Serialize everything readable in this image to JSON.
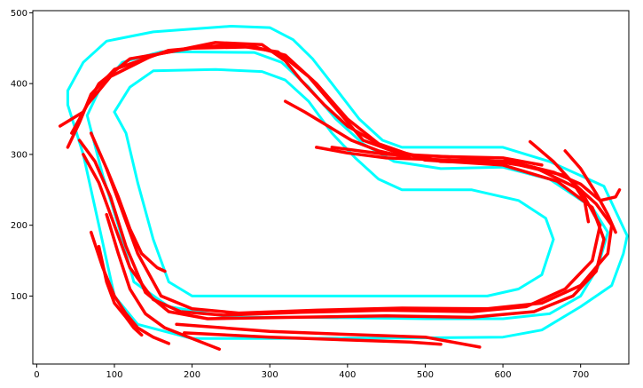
{
  "chart_data": {
    "type": "line",
    "title": "",
    "xlabel": "",
    "ylabel": "",
    "xlim": [
      -5,
      762
    ],
    "ylim": [
      4,
      503
    ],
    "x_ticks": [
      0,
      100,
      200,
      300,
      400,
      500,
      600,
      700
    ],
    "y_ticks": [
      100,
      200,
      300,
      400,
      500
    ],
    "x_tick_labels": [
      "0",
      "100",
      "200",
      "300",
      "400",
      "500",
      "600",
      "700"
    ],
    "y_tick_labels": [
      "100",
      "200",
      "300",
      "400",
      "500"
    ],
    "grid": false,
    "legend": false,
    "series": [
      {
        "color": "#00ffff",
        "role": "track outer boundary",
        "closed": true,
        "points": [
          [
            40,
            390
          ],
          [
            60,
            430
          ],
          [
            90,
            460
          ],
          [
            150,
            473
          ],
          [
            250,
            481
          ],
          [
            300,
            479
          ],
          [
            330,
            462
          ],
          [
            355,
            435
          ],
          [
            380,
            400
          ],
          [
            415,
            350
          ],
          [
            445,
            320
          ],
          [
            470,
            310
          ],
          [
            600,
            310
          ],
          [
            660,
            290
          ],
          [
            730,
            255
          ],
          [
            760,
            185
          ],
          [
            755,
            160
          ],
          [
            740,
            115
          ],
          [
            700,
            85
          ],
          [
            650,
            52
          ],
          [
            600,
            42
          ],
          [
            500,
            41
          ],
          [
            300,
            40
          ],
          [
            200,
            40
          ],
          [
            130,
            60
          ],
          [
            100,
            100
          ],
          [
            80,
            200
          ],
          [
            60,
            300
          ],
          [
            40,
            370
          ]
        ]
      },
      {
        "color": "#00ffff",
        "role": "track middle boundary",
        "closed": true,
        "points": [
          [
            65,
            355
          ],
          [
            80,
            390
          ],
          [
            110,
            430
          ],
          [
            160,
            445
          ],
          [
            280,
            444
          ],
          [
            315,
            430
          ],
          [
            350,
            395
          ],
          [
            385,
            350
          ],
          [
            420,
            315
          ],
          [
            460,
            290
          ],
          [
            520,
            280
          ],
          [
            600,
            282
          ],
          [
            660,
            265
          ],
          [
            715,
            225
          ],
          [
            735,
            190
          ],
          [
            722,
            140
          ],
          [
            700,
            100
          ],
          [
            660,
            75
          ],
          [
            600,
            68
          ],
          [
            500,
            68
          ],
          [
            350,
            70
          ],
          [
            250,
            70
          ],
          [
            170,
            85
          ],
          [
            125,
            120
          ],
          [
            105,
            200
          ],
          [
            85,
            270
          ]
        ]
      },
      {
        "color": "#00ffff",
        "role": "track inner boundary",
        "closed": true,
        "points": [
          [
            100,
            360
          ],
          [
            120,
            395
          ],
          [
            150,
            418
          ],
          [
            230,
            420
          ],
          [
            290,
            417
          ],
          [
            320,
            405
          ],
          [
            350,
            375
          ],
          [
            380,
            330
          ],
          [
            410,
            295
          ],
          [
            440,
            265
          ],
          [
            470,
            250
          ],
          [
            560,
            250
          ],
          [
            620,
            235
          ],
          [
            655,
            210
          ],
          [
            665,
            180
          ],
          [
            650,
            130
          ],
          [
            620,
            110
          ],
          [
            580,
            100
          ],
          [
            450,
            100
          ],
          [
            300,
            100
          ],
          [
            200,
            100
          ],
          [
            170,
            120
          ],
          [
            150,
            180
          ],
          [
            130,
            260
          ],
          [
            115,
            330
          ]
        ]
      },
      {
        "color": "#ff0000",
        "role": "trajectory 1",
        "closed": false,
        "points": [
          [
            30,
            340
          ],
          [
            60,
            360
          ],
          [
            80,
            400
          ],
          [
            120,
            435
          ],
          [
            200,
            450
          ],
          [
            280,
            452
          ],
          [
            320,
            440
          ],
          [
            360,
            400
          ],
          [
            400,
            350
          ],
          [
            440,
            315
          ],
          [
            500,
            292
          ],
          [
            600,
            285
          ],
          [
            670,
            262
          ],
          [
            715,
            225
          ],
          [
            730,
            180
          ],
          [
            720,
            135
          ],
          [
            690,
            100
          ],
          [
            640,
            78
          ],
          [
            560,
            70
          ],
          [
            450,
            72
          ],
          [
            330,
            70
          ],
          [
            220,
            68
          ],
          [
            170,
            78
          ],
          [
            140,
            105
          ],
          [
            115,
            170
          ],
          [
            95,
            240
          ],
          [
            75,
            290
          ],
          [
            55,
            320
          ]
        ]
      },
      {
        "color": "#ff0000",
        "role": "trajectory 2",
        "closed": false,
        "points": [
          [
            40,
            310
          ],
          [
            55,
            345
          ],
          [
            70,
            385
          ],
          [
            100,
            420
          ],
          [
            170,
            447
          ],
          [
            250,
            455
          ],
          [
            310,
            445
          ],
          [
            350,
            410
          ],
          [
            385,
            365
          ],
          [
            420,
            320
          ],
          [
            470,
            300
          ],
          [
            560,
            295
          ],
          [
            640,
            282
          ],
          [
            700,
            250
          ],
          [
            725,
            200
          ],
          [
            715,
            150
          ],
          [
            680,
            110
          ],
          [
            630,
            85
          ],
          [
            560,
            78
          ],
          [
            450,
            80
          ],
          [
            340,
            77
          ],
          [
            240,
            73
          ],
          [
            185,
            78
          ],
          [
            150,
            95
          ],
          [
            120,
            140
          ],
          [
            100,
            200
          ],
          [
            80,
            260
          ],
          [
            60,
            300
          ]
        ]
      },
      {
        "color": "#ff0000",
        "role": "trajectory 3",
        "closed": false,
        "points": [
          [
            45,
            330
          ],
          [
            65,
            370
          ],
          [
            95,
            410
          ],
          [
            150,
            440
          ],
          [
            230,
            458
          ],
          [
            290,
            455
          ],
          [
            320,
            432
          ],
          [
            340,
            405
          ],
          [
            370,
            370
          ],
          [
            400,
            340
          ],
          [
            450,
            308
          ],
          [
            520,
            290
          ],
          [
            610,
            288
          ],
          [
            680,
            270
          ],
          [
            720,
            230
          ],
          [
            740,
            200
          ],
          [
            735,
            160
          ],
          [
            700,
            115
          ],
          [
            650,
            90
          ],
          [
            580,
            82
          ],
          [
            470,
            83
          ],
          [
            360,
            80
          ],
          [
            260,
            76
          ],
          [
            200,
            82
          ],
          [
            160,
            100
          ],
          [
            130,
            160
          ],
          [
            110,
            220
          ],
          [
            90,
            280
          ],
          [
            70,
            330
          ]
        ]
      },
      {
        "color": "#ff0000",
        "role": "trajectory 4",
        "closed": false,
        "points": [
          [
            360,
            310
          ],
          [
            400,
            302
          ],
          [
            450,
            295
          ],
          [
            530,
            292
          ],
          [
            610,
            290
          ],
          [
            665,
            275
          ],
          [
            700,
            258
          ],
          [
            725,
            235
          ],
          [
            745,
            240
          ],
          [
            750,
            250
          ]
        ]
      },
      {
        "color": "#ff0000",
        "role": "trajectory 5",
        "closed": false,
        "points": [
          [
            680,
            305
          ],
          [
            700,
            280
          ],
          [
            720,
            245
          ],
          [
            735,
            215
          ],
          [
            745,
            190
          ]
        ]
      },
      {
        "color": "#ff0000",
        "role": "trajectory 6",
        "closed": false,
        "points": [
          [
            635,
            318
          ],
          [
            665,
            290
          ],
          [
            690,
            260
          ],
          [
            705,
            235
          ],
          [
            710,
            205
          ]
        ]
      },
      {
        "color": "#ff0000",
        "role": "trajectory 7",
        "closed": false,
        "points": [
          [
            320,
            375
          ],
          [
            345,
            360
          ],
          [
            375,
            340
          ],
          [
            405,
            320
          ],
          [
            440,
            305
          ],
          [
            480,
            295
          ]
        ]
      },
      {
        "color": "#ff0000",
        "role": "trajectory 8",
        "closed": false,
        "points": [
          [
            90,
            280
          ],
          [
            105,
            240
          ],
          [
            120,
            195
          ],
          [
            135,
            160
          ],
          [
            155,
            140
          ],
          [
            165,
            135
          ]
        ]
      },
      {
        "color": "#ff0000",
        "role": "trajectory 9",
        "closed": false,
        "points": [
          [
            90,
            215
          ],
          [
            105,
            160
          ],
          [
            120,
            110
          ],
          [
            140,
            75
          ],
          [
            165,
            55
          ],
          [
            200,
            40
          ],
          [
            235,
            25
          ]
        ]
      },
      {
        "color": "#ff0000",
        "role": "trajectory 10",
        "closed": false,
        "points": [
          [
            70,
            190
          ],
          [
            85,
            140
          ],
          [
            100,
            100
          ],
          [
            115,
            75
          ],
          [
            130,
            55
          ],
          [
            150,
            42
          ],
          [
            170,
            33
          ]
        ]
      },
      {
        "color": "#ff0000",
        "role": "trajectory 11",
        "closed": false,
        "points": [
          [
            80,
            170
          ],
          [
            90,
            120
          ],
          [
            100,
            90
          ],
          [
            115,
            70
          ],
          [
            125,
            55
          ],
          [
            135,
            45
          ]
        ]
      },
      {
        "color": "#ff0000",
        "role": "trajectory 12",
        "closed": false,
        "points": [
          [
            180,
            60
          ],
          [
            300,
            50
          ],
          [
            420,
            45
          ],
          [
            500,
            42
          ],
          [
            570,
            28
          ]
        ]
      },
      {
        "color": "#ff0000",
        "role": "trajectory 13",
        "closed": false,
        "points": [
          [
            190,
            48
          ],
          [
            300,
            42
          ],
          [
            400,
            38
          ],
          [
            480,
            35
          ],
          [
            520,
            32
          ]
        ]
      },
      {
        "color": "#ff0000",
        "role": "trajectory 14",
        "closed": false,
        "points": [
          [
            380,
            310
          ],
          [
            450,
            300
          ],
          [
            520,
            297
          ],
          [
            600,
            295
          ],
          [
            650,
            285
          ]
        ]
      }
    ]
  }
}
